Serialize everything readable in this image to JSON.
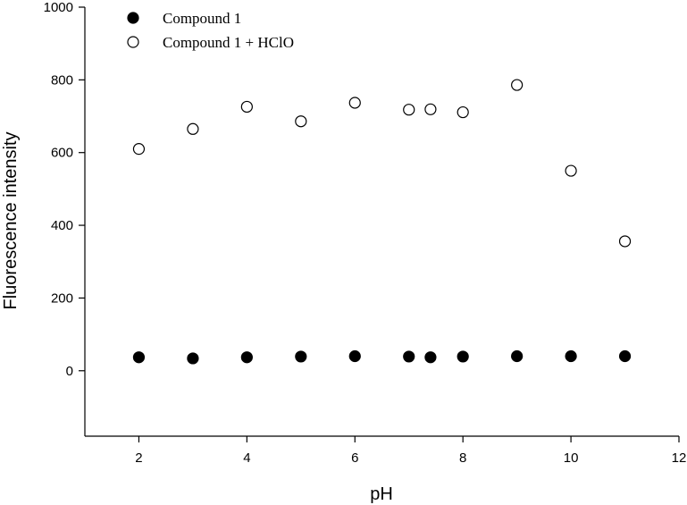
{
  "chart_data": {
    "type": "scatter",
    "title": "",
    "xlabel": "pH",
    "ylabel": "Fluorescence intensity",
    "xlim": [
      1,
      12
    ],
    "ylim": [
      -180,
      1000
    ],
    "xticks": [
      2,
      4,
      6,
      8,
      10,
      12
    ],
    "yticks": [
      0,
      200,
      400,
      600,
      800,
      1000
    ],
    "grid": false,
    "legend_position": "top-left",
    "series": [
      {
        "name": "Compound 1",
        "marker": "filled-circle",
        "color": "#000000",
        "x": [
          2,
          3,
          4,
          5,
          6,
          7,
          7.4,
          8,
          9,
          10,
          11
        ],
        "y": [
          37,
          34,
          37,
          39,
          40,
          39,
          37,
          39,
          40,
          40,
          40
        ]
      },
      {
        "name": "Compound 1 + HClO",
        "marker": "open-circle",
        "color": "#000000",
        "x": [
          2,
          3,
          4,
          5,
          6,
          7,
          7.4,
          8,
          9,
          10,
          11
        ],
        "y": [
          610,
          665,
          726,
          686,
          737,
          718,
          719,
          711,
          786,
          550,
          356
        ]
      }
    ]
  }
}
